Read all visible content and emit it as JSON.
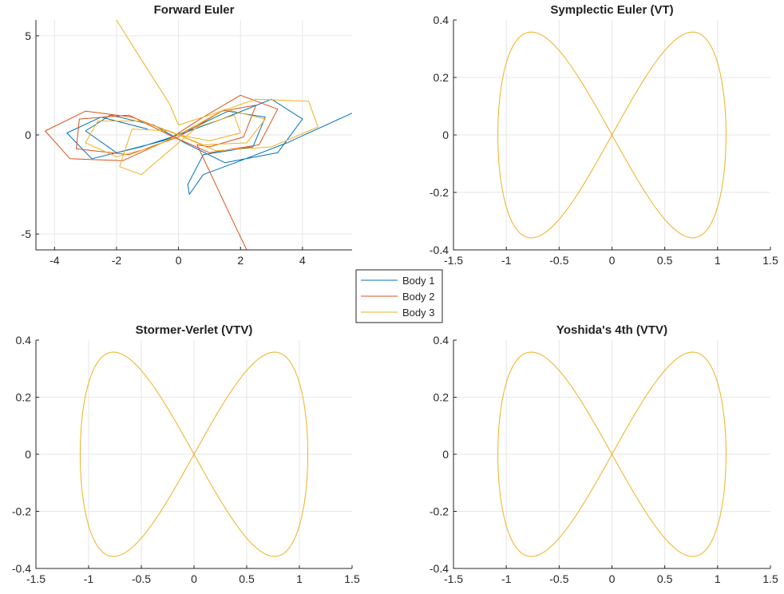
{
  "figure": {
    "legend": {
      "entries": [
        {
          "name": "Body 1",
          "color": "#0072BD"
        },
        {
          "name": "Body 2",
          "color": "#D95319"
        },
        {
          "name": "Body 3",
          "color": "#EDB120"
        }
      ]
    }
  },
  "chart_data": [
    {
      "type": "line",
      "title": "Forward Euler",
      "xlabel": "",
      "ylabel": "",
      "xlim": [
        -4.6,
        5.6
      ],
      "ylim": [
        -5.8,
        5.8
      ],
      "xticks": [
        -4,
        -2,
        0,
        2,
        4
      ],
      "yticks": [
        -5,
        0,
        5
      ],
      "grid": true,
      "note": "divergent, chaotic trajectories (approximate shape)",
      "series": [
        {
          "name": "Body 1",
          "color": "#0072BD",
          "points": [
            [
              -1.0,
              0.3
            ],
            [
              -2.5,
              0.9
            ],
            [
              -3.6,
              0.1
            ],
            [
              -2.8,
              -1.2
            ],
            [
              -1.2,
              -0.6
            ],
            [
              0.0,
              0.0
            ],
            [
              1.4,
              0.8
            ],
            [
              3.0,
              1.8
            ],
            [
              4.0,
              0.8
            ],
            [
              3.2,
              -0.9
            ],
            [
              1.5,
              -1.4
            ],
            [
              0.2,
              -0.4
            ],
            [
              -0.8,
              0.5
            ],
            [
              -2.2,
              1.0
            ],
            [
              -3.0,
              0.2
            ],
            [
              -2.0,
              -0.9
            ],
            [
              -0.5,
              -0.3
            ],
            [
              0.4,
              0.3
            ],
            [
              1.6,
              1.2
            ],
            [
              2.8,
              0.9
            ],
            [
              2.4,
              -0.6
            ],
            [
              0.8,
              -1.0
            ],
            [
              0.3,
              -2.5
            ],
            [
              0.35,
              -3.0
            ],
            [
              0.8,
              -2.0
            ],
            [
              2.0,
              -1.3
            ],
            [
              3.5,
              -0.4
            ],
            [
              5.6,
              1.1
            ]
          ]
        },
        {
          "name": "Body 2",
          "color": "#D95319",
          "points": [
            [
              0.0,
              0.0
            ],
            [
              -1.5,
              0.9
            ],
            [
              -3.0,
              1.2
            ],
            [
              -4.3,
              0.2
            ],
            [
              -3.5,
              -1.2
            ],
            [
              -1.8,
              -1.3
            ],
            [
              -0.4,
              -0.3
            ],
            [
              0.8,
              0.9
            ],
            [
              2.0,
              2.0
            ],
            [
              3.2,
              1.3
            ],
            [
              2.6,
              -0.5
            ],
            [
              1.0,
              -0.9
            ],
            [
              -0.3,
              0.0
            ],
            [
              -1.6,
              1.0
            ],
            [
              -3.2,
              0.8
            ],
            [
              -3.3,
              -0.7
            ],
            [
              -1.6,
              -1.0
            ],
            [
              0.0,
              -0.1
            ],
            [
              1.4,
              1.2
            ],
            [
              2.5,
              1.5
            ],
            [
              2.1,
              -0.1
            ],
            [
              1.0,
              -0.6
            ],
            [
              0.6,
              -0.5
            ],
            [
              1.2,
              -2.5
            ],
            [
              1.8,
              -4.5
            ],
            [
              2.2,
              -5.8
            ]
          ]
        },
        {
          "name": "Body 3",
          "color": "#EDB120",
          "points": [
            [
              -2.0,
              5.8
            ],
            [
              -1.2,
              3.8
            ],
            [
              -0.3,
              1.6
            ],
            [
              0.0,
              0.5
            ],
            [
              1.0,
              1.0
            ],
            [
              2.5,
              1.8
            ],
            [
              4.2,
              1.7
            ],
            [
              4.5,
              0.4
            ],
            [
              3.0,
              -0.6
            ],
            [
              1.2,
              -0.8
            ],
            [
              0.0,
              0.0
            ],
            [
              -1.2,
              0.7
            ],
            [
              -2.6,
              0.7
            ],
            [
              -3.0,
              -0.4
            ],
            [
              -2.0,
              -1.1
            ],
            [
              -0.8,
              -0.6
            ],
            [
              0.0,
              0.0
            ],
            [
              1.5,
              1.3
            ],
            [
              2.8,
              0.8
            ],
            [
              2.2,
              -0.4
            ],
            [
              0.8,
              -0.5
            ],
            [
              -0.3,
              0.2
            ],
            [
              -1.5,
              0.3
            ],
            [
              -1.9,
              -1.6
            ],
            [
              -1.2,
              -2.0
            ],
            [
              -0.3,
              -0.8
            ],
            [
              0.6,
              0.4
            ],
            [
              1.8,
              1.0
            ],
            [
              2.0,
              0.1
            ],
            [
              1.0,
              -0.3
            ],
            [
              0.0,
              0.0
            ]
          ]
        }
      ]
    },
    {
      "type": "line",
      "title": "Symplectic Euler (VT)",
      "xlabel": "",
      "ylabel": "",
      "xlim": [
        -1.5,
        1.5
      ],
      "ylim": [
        -0.4,
        0.4
      ],
      "xticks": [
        -1.5,
        -1,
        -0.5,
        0,
        0.5,
        1,
        1.5
      ],
      "yticks": [
        -0.4,
        -0.2,
        0,
        0.2,
        0.4
      ],
      "grid": true,
      "curve": {
        "shape": "figure-eight",
        "amplitude_x": 1.08,
        "peak_x": 0.67,
        "peak_y": 0.358
      }
    },
    {
      "type": "line",
      "title": "Stormer-Verlet (VTV)",
      "xlabel": "",
      "ylabel": "",
      "xlim": [
        -1.5,
        1.5
      ],
      "ylim": [
        -0.4,
        0.4
      ],
      "xticks": [
        -1.5,
        -1,
        -0.5,
        0,
        0.5,
        1,
        1.5
      ],
      "yticks": [
        -0.4,
        -0.2,
        0,
        0.2,
        0.4
      ],
      "grid": true,
      "curve": {
        "shape": "figure-eight",
        "amplitude_x": 1.08,
        "peak_x": 0.67,
        "peak_y": 0.358
      }
    },
    {
      "type": "line",
      "title": "Yoshida's 4th (VTV)",
      "xlabel": "",
      "ylabel": "",
      "xlim": [
        -1.5,
        1.5
      ],
      "ylim": [
        -0.4,
        0.4
      ],
      "xticks": [
        -1.5,
        -1,
        -0.5,
        0,
        0.5,
        1,
        1.5
      ],
      "yticks": [
        -0.4,
        -0.2,
        0,
        0.2,
        0.4
      ],
      "grid": true,
      "curve": {
        "shape": "figure-eight",
        "amplitude_x": 1.08,
        "peak_x": 0.67,
        "peak_y": 0.358
      }
    }
  ]
}
